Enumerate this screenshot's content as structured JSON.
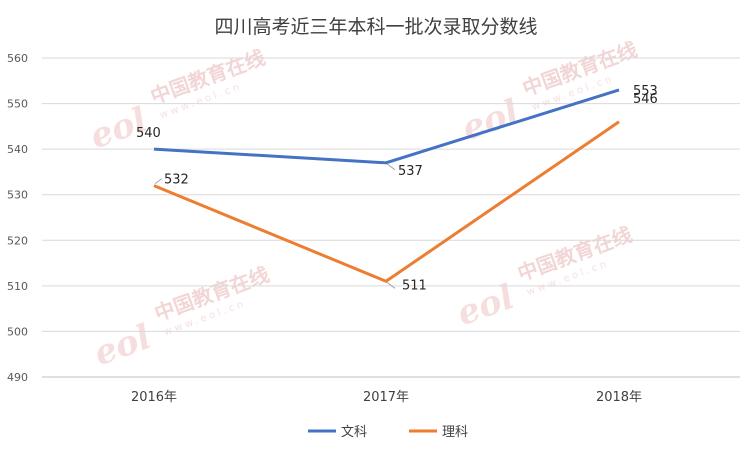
{
  "chart_data": {
    "type": "line",
    "title": "四川高考近三年本科一批次录取分数线",
    "categories": [
      "2016年",
      "2017年",
      "2018年"
    ],
    "series": [
      {
        "name": "文科",
        "values": [
          540,
          537,
          553
        ],
        "color": "#4472c4"
      },
      {
        "name": "理科",
        "values": [
          532,
          511,
          546
        ],
        "color": "#ed7d31"
      }
    ],
    "ylim": [
      490,
      560
    ],
    "ytick_step": 10,
    "grid": true,
    "legend_position": "bottom"
  },
  "watermark": {
    "text": "中国教育在线",
    "sub": "www.eol.cn",
    "logo": "eol"
  }
}
